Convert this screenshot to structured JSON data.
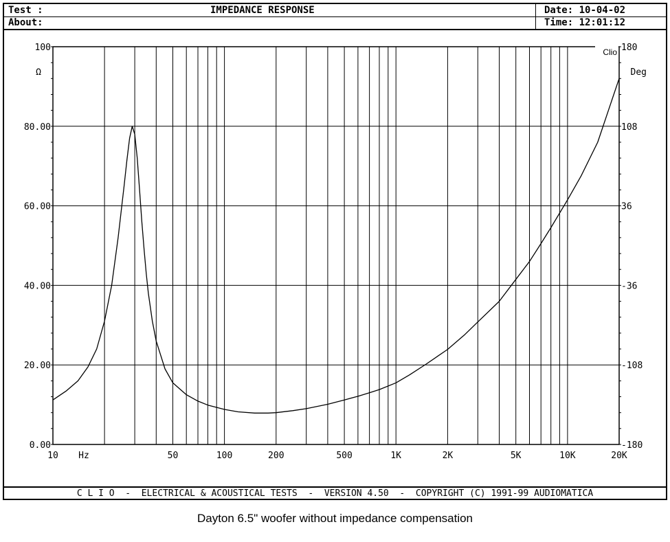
{
  "header": {
    "test_label": "Test :",
    "title": "IMPEDANCE RESPONSE",
    "date": "Date: 10-04-02",
    "about_label": "About:",
    "time": "Time: 12:01:12"
  },
  "footer": "C L I O  -  ELECTRICAL & ACOUSTICAL TESTS  -  VERSION 4.50  -  COPYRIGHT (C) 1991-99 AUDIOMATICA",
  "caption": "Dayton 6.5\" woofer without impedance compensation",
  "chart_data": {
    "type": "line",
    "title": "IMPEDANCE RESPONSE",
    "xlabel": "Hz",
    "ylabel": "Ω",
    "y2label": "Deg",
    "brand": "Clio",
    "x_scale": "log",
    "xlim": [
      10,
      20000
    ],
    "ylim": [
      0,
      100
    ],
    "y2lim": [
      -180,
      180
    ],
    "grid": true,
    "x_ticks": [
      {
        "value": 10,
        "label": "10"
      },
      {
        "value": 50,
        "label": "50"
      },
      {
        "value": 100,
        "label": "100"
      },
      {
        "value": 200,
        "label": "200"
      },
      {
        "value": 500,
        "label": "500"
      },
      {
        "value": 1000,
        "label": "1K"
      },
      {
        "value": 2000,
        "label": "2K"
      },
      {
        "value": 5000,
        "label": "5K"
      },
      {
        "value": 10000,
        "label": "10K"
      },
      {
        "value": 20000,
        "label": "20K"
      }
    ],
    "y_ticks": [
      {
        "value": 0,
        "label": "0.00"
      },
      {
        "value": 20,
        "label": "20.00"
      },
      {
        "value": 40,
        "label": "40.00"
      },
      {
        "value": 60,
        "label": "60.00"
      },
      {
        "value": 80,
        "label": "80.00"
      },
      {
        "value": 100,
        "label": "100"
      }
    ],
    "y2_ticks": [
      {
        "value": -180,
        "label": "-180"
      },
      {
        "value": -108,
        "label": "-108"
      },
      {
        "value": -36,
        "label": "-36"
      },
      {
        "value": 36,
        "label": "36"
      },
      {
        "value": 108,
        "label": "108"
      },
      {
        "value": 180,
        "label": "180"
      }
    ],
    "series": [
      {
        "x": [
          10,
          12,
          14,
          16,
          18,
          20,
          22,
          24,
          26,
          27,
          28,
          29,
          30,
          31,
          32,
          33,
          34,
          35,
          36,
          38,
          40,
          45,
          50,
          60,
          70,
          80,
          100,
          120,
          150,
          180,
          200,
          250,
          300,
          400,
          500,
          600,
          700,
          800,
          1000,
          1200,
          1500,
          2000,
          2500,
          3000,
          4000,
          5000,
          6000,
          7000,
          8000,
          10000,
          12000,
          15000,
          20000
        ],
        "y": [
          11.2,
          13.5,
          16.0,
          19.5,
          24.0,
          31.0,
          40.0,
          52.0,
          65.0,
          71.5,
          77.0,
          80.0,
          78.0,
          72.0,
          64.0,
          56.0,
          49.0,
          43.0,
          38.0,
          31.0,
          26.0,
          19.0,
          15.5,
          12.5,
          10.9,
          9.9,
          8.8,
          8.2,
          7.9,
          7.9,
          8.0,
          8.5,
          9.0,
          10.1,
          11.2,
          12.1,
          13.0,
          13.8,
          15.5,
          17.5,
          20.2,
          23.9,
          27.5,
          30.8,
          36.0,
          41.5,
          46.0,
          50.5,
          54.5,
          61.5,
          67.5,
          76.0,
          92.0
        ]
      }
    ]
  }
}
